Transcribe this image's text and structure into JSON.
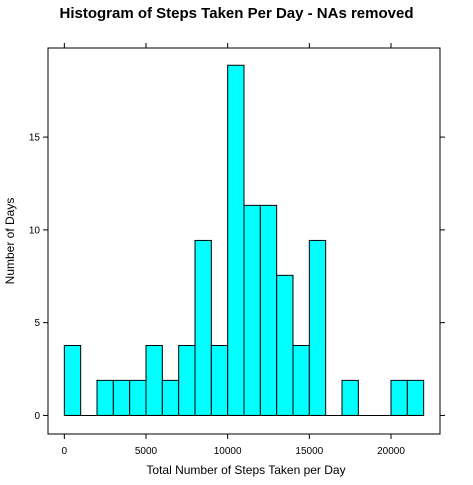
{
  "chart_data": {
    "type": "bar",
    "title": "Histogram of Steps Taken Per Day - NAs removed",
    "xlabel": "Total Number of Steps Taken per Day",
    "ylabel": "Number of Days",
    "xlim": [
      -1000,
      23000
    ],
    "ylim": [
      -1.0,
      19.8
    ],
    "bin_width": 1000,
    "bin_starts": [
      0,
      1000,
      2000,
      3000,
      4000,
      5000,
      6000,
      7000,
      8000,
      9000,
      10000,
      11000,
      12000,
      13000,
      14000,
      15000,
      16000,
      17000,
      18000,
      19000,
      20000,
      21000
    ],
    "values": [
      3.77,
      0,
      1.89,
      1.89,
      1.89,
      3.77,
      1.89,
      3.77,
      9.43,
      3.77,
      18.87,
      11.32,
      11.32,
      7.55,
      3.77,
      9.43,
      0,
      1.89,
      0,
      0,
      1.89,
      1.89
    ],
    "x_ticks": [
      0,
      5000,
      10000,
      15000,
      20000
    ],
    "x_tick_labels": [
      "0",
      "5000",
      "10000",
      "15000",
      "20000"
    ],
    "y_ticks": [
      0,
      5,
      10,
      15
    ],
    "y_tick_labels": [
      "0",
      "5",
      "10",
      "15"
    ],
    "grid": false,
    "colors": {
      "bar_fill": "#00FFFF",
      "bar_stroke": "#000000",
      "frame": "#000000",
      "baseline": "#000000"
    }
  }
}
